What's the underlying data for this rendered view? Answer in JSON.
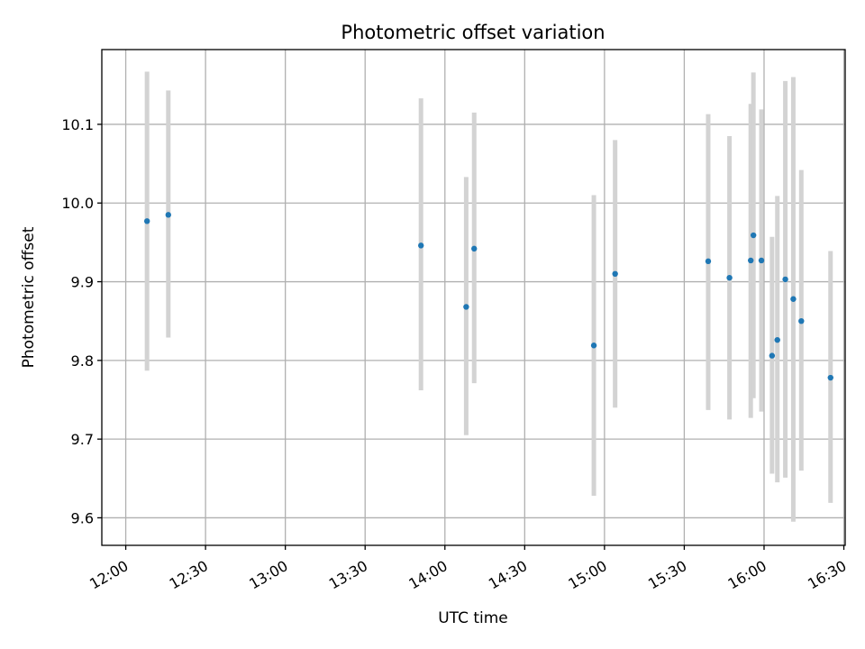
{
  "chart_data": {
    "type": "scatter",
    "title": "Photometric offset variation",
    "xlabel": "UTC time",
    "ylabel": "Photometric offset",
    "xlim": [
      "11:51",
      "16:30:30"
    ],
    "ylim": [
      9.565,
      10.195
    ],
    "xticks": [
      "12:00",
      "12:30",
      "13:00",
      "13:30",
      "14:00",
      "14:30",
      "15:00",
      "15:30",
      "16:00",
      "16:30"
    ],
    "yticks": [
      9.6,
      9.7,
      9.8,
      9.9,
      10.0,
      10.1
    ],
    "ytick_labels": [
      "9.6",
      "9.7",
      "9.8",
      "9.9",
      "10.0",
      "10.1"
    ],
    "grid": true,
    "marker_color": "#1f77b4",
    "errorbar_color": "#d3d3d3",
    "points": [
      {
        "x": "12:08",
        "y": 9.977,
        "lo": 9.787,
        "hi": 10.167
      },
      {
        "x": "12:16",
        "y": 9.985,
        "lo": 9.829,
        "hi": 10.143
      },
      {
        "x": "13:51",
        "y": 9.946,
        "lo": 9.762,
        "hi": 10.133
      },
      {
        "x": "14:08",
        "y": 9.868,
        "lo": 9.705,
        "hi": 10.033
      },
      {
        "x": "14:11",
        "y": 9.942,
        "lo": 9.771,
        "hi": 10.115
      },
      {
        "x": "14:56",
        "y": 9.819,
        "lo": 9.628,
        "hi": 10.01
      },
      {
        "x": "15:04",
        "y": 9.91,
        "lo": 9.74,
        "hi": 10.08
      },
      {
        "x": "15:39",
        "y": 9.926,
        "lo": 9.737,
        "hi": 10.113
      },
      {
        "x": "15:47",
        "y": 9.905,
        "lo": 9.725,
        "hi": 10.085
      },
      {
        "x": "15:55",
        "y": 9.927,
        "lo": 9.727,
        "hi": 10.126
      },
      {
        "x": "15:56",
        "y": 9.959,
        "lo": 9.752,
        "hi": 10.166
      },
      {
        "x": "15:59",
        "y": 9.927,
        "lo": 9.735,
        "hi": 10.119
      },
      {
        "x": "16:03",
        "y": 9.806,
        "lo": 9.656,
        "hi": 9.957
      },
      {
        "x": "16:05",
        "y": 9.826,
        "lo": 9.645,
        "hi": 10.009
      },
      {
        "x": "16:08",
        "y": 9.903,
        "lo": 9.651,
        "hi": 10.155
      },
      {
        "x": "16:11",
        "y": 9.878,
        "lo": 9.595,
        "hi": 10.16
      },
      {
        "x": "16:14",
        "y": 9.85,
        "lo": 9.66,
        "hi": 10.042
      },
      {
        "x": "16:25",
        "y": 9.778,
        "lo": 9.619,
        "hi": 9.939
      }
    ]
  }
}
